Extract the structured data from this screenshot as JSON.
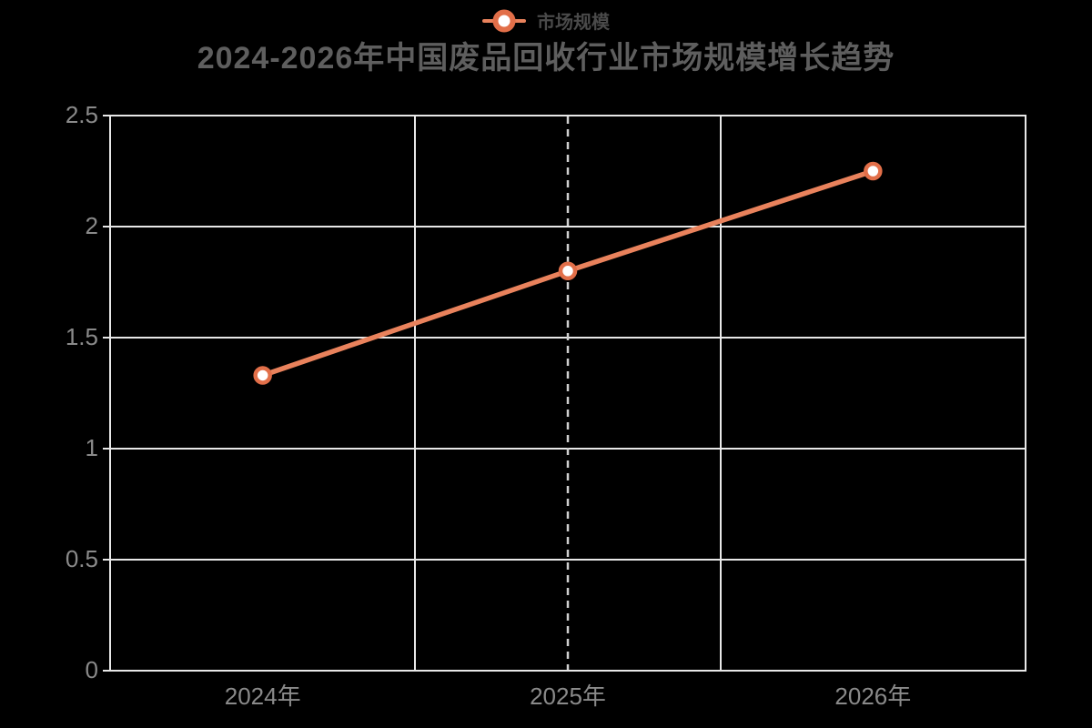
{
  "title": "2024-2026年中国废品回收行业市场规模增长趋势",
  "legend": {
    "label": "市场规模"
  },
  "chart_data": {
    "type": "line",
    "title": "2024-2026年中国废品回收行业市场规模增长趋势",
    "categories": [
      "2024年",
      "2025年",
      "2026年"
    ],
    "series": [
      {
        "name": "市场规模",
        "values": [
          1.33,
          1.8,
          2.25
        ]
      }
    ],
    "xlabel": "",
    "ylabel": "",
    "ylim": [
      0,
      2.5
    ],
    "yticks": [
      0,
      0.5,
      1,
      1.5,
      2,
      2.5
    ],
    "ytick_labels": [
      "0",
      "0.5",
      "1",
      "1.5",
      "2",
      "2.5"
    ],
    "grid": true,
    "legend_position": "top-center",
    "dashed_guide_category": "2025年",
    "marker_style": "ring",
    "colors": {
      "background": "#000000",
      "line": "#E9825C",
      "marker_border": "#E26F49",
      "marker_fill": "#FFFFFF",
      "grid_line": "#E8E8E8",
      "axis_border": "#E8E8E8",
      "axis_tick": "#E8E8E8",
      "dashed_guide": "#CFCFCF",
      "title_text": "#5E5E5E",
      "legend_text": "#4A4A4A",
      "tick_text": "#8A8A8A"
    }
  }
}
